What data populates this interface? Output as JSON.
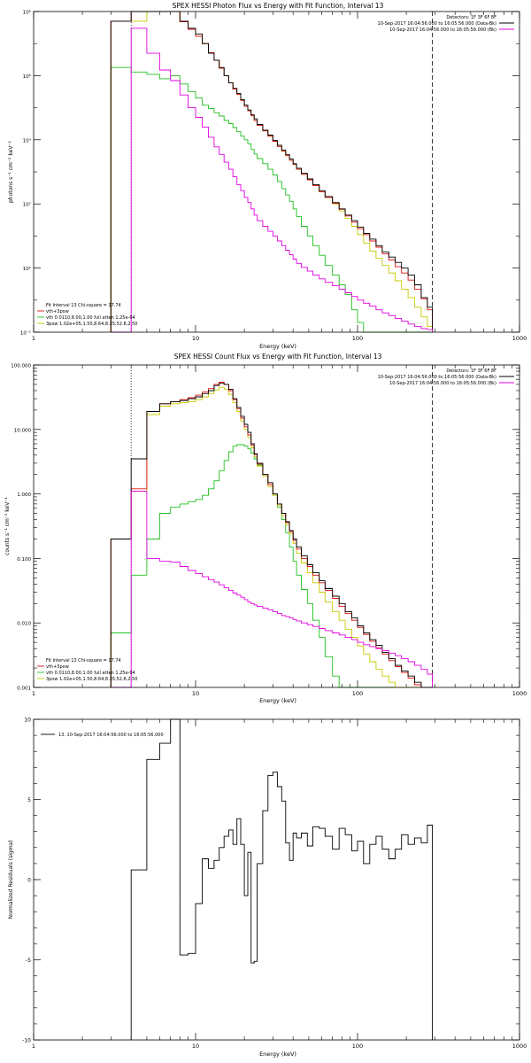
{
  "chart_data": [
    {
      "type": "line",
      "title": "SPEX HESSI Photon Flux vs Energy with Fit Function, Interval 13",
      "xlabel": "Energy (keV)",
      "ylabel": "photons s⁻¹ cm⁻² keV⁻¹",
      "xscale": "log",
      "yscale": "log",
      "xlim": [
        1,
        1000
      ],
      "ylim": [
        0.01,
        100000000
      ],
      "x_ticks": [
        "1",
        "10",
        "100",
        "1000"
      ],
      "y_ticks": [
        "10⁻²",
        "10⁰",
        "10²",
        "10⁴",
        "10⁶",
        "10⁸"
      ],
      "grid": false,
      "legend_position": "top-right",
      "legend": [
        {
          "text": "Detectors: 1F 3F 6F 8F",
          "color": "#000000"
        },
        {
          "text": "10-Sep-2017 16:04:56.000 to 16:05:56.000 (Data-Bk)",
          "color": "#000000"
        },
        {
          "text": "10-Sep-2017 16:04:56.000 to 16:05:56.000 (Bk)",
          "color": "#e000e0"
        }
      ],
      "fit_info": [
        {
          "text": "Fit Interval 13   Chi-square = 17.74",
          "color": "#000000"
        },
        {
          "text": "vth+3pow",
          "color": "#e01010"
        },
        {
          "text": "vth 0.0110,8.00,1.00  full atten 1.25e-04",
          "color": "#20c020"
        },
        {
          "text": "3pow 1.02e+05,1.50,8.64,8.35,52.8,2.50",
          "color": "#c8c800"
        }
      ],
      "vlines": [
        {
          "x": 4,
          "style": "dotted"
        },
        {
          "x": 290,
          "style": "dashed"
        }
      ],
      "bin_edges": [
        3,
        4,
        5,
        6,
        7,
        8,
        9,
        10,
        11,
        12,
        13,
        14,
        15,
        16,
        17,
        18,
        19,
        20,
        21,
        22,
        23,
        24,
        26,
        28,
        30,
        32,
        34,
        36,
        38,
        40,
        42,
        45,
        49,
        53,
        58,
        63,
        70,
        77,
        84,
        92,
        100,
        109,
        119,
        130,
        142,
        156,
        171,
        187,
        205,
        225,
        247,
        270,
        290
      ],
      "series": [
        {
          "name": "Data-Bk",
          "color": "#000000",
          "values": [
            50000000,
            400000000,
            300000000,
            200000000,
            100000000,
            50000000,
            30000000,
            20000000,
            10000000,
            5000000,
            3000000,
            1800000,
            1000000,
            600000,
            400000,
            280000,
            180000,
            120000,
            85000,
            60000,
            45000,
            30000,
            20000,
            14000,
            9500,
            6800,
            4800,
            3500,
            2500,
            1800,
            1300,
            900,
            600,
            400,
            260,
            170,
            110,
            70,
            45,
            30,
            19,
            12,
            8,
            5,
            3.2,
            2.2,
            1.5,
            1,
            0.6,
            0.3,
            0.12,
            0.06
          ]
        },
        {
          "name": "vth+3pow",
          "color": "#e01010",
          "values": [
            50000000,
            250000000,
            250000000,
            180000000,
            100000000,
            48000000,
            28000000,
            17000000,
            10000000,
            5200000,
            3000000,
            1700000,
            1000000,
            600000,
            380000,
            260000,
            170000,
            110000,
            80000,
            56000,
            40000,
            28000,
            19000,
            13000,
            9000,
            6200,
            4400,
            3200,
            2300,
            1700,
            1200,
            840,
            560,
            370,
            240,
            160,
            105,
            68,
            42,
            27,
            17,
            11,
            7,
            4.5,
            2.8,
            1.8,
            1.1,
            0.7,
            0.42,
            0.22,
            0.11,
            0.05
          ]
        },
        {
          "name": "vth",
          "color": "#20c020",
          "values": [
            1800000,
            1300000,
            1100000,
            800000,
            1000000,
            550000,
            320000,
            200000,
            120000,
            95000,
            70000,
            55000,
            40000,
            32000,
            24000,
            18000,
            13000,
            10000,
            7500,
            5000,
            3600,
            2600,
            1800,
            1200,
            800,
            500,
            300,
            190,
            120,
            70,
            40,
            20,
            10,
            5,
            2.5,
            1.2,
            0.6,
            0.3,
            0.15,
            0.05,
            0.02,
            0.01,
            0.01,
            0.01,
            0.01,
            0.01,
            0.01,
            0.01,
            0.01,
            0.01,
            0.01,
            0.01
          ]
        },
        {
          "name": "3pow",
          "color": "#c8c800",
          "values": [
            50000000,
            50000000,
            250000000,
            180000000,
            100000000,
            48000000,
            28000000,
            17000000,
            10000000,
            5200000,
            3000000,
            1700000,
            1000000,
            600000,
            380000,
            260000,
            170000,
            110000,
            80000,
            56000,
            40000,
            28000,
            19000,
            13000,
            9000,
            6200,
            4400,
            3200,
            2300,
            1700,
            1200,
            840,
            560,
            370,
            240,
            160,
            100,
            60,
            35,
            20,
            11,
            6,
            3.4,
            2,
            1.2,
            0.7,
            0.4,
            0.22,
            0.12,
            0.06,
            0.03,
            0.015
          ]
        },
        {
          "name": "Bk",
          "color": "#e000e0",
          "values": [
            0.01,
            30000000,
            5000000,
            1500000,
            700000,
            250000,
            100000,
            50000,
            25000,
            12000,
            6000,
            3500,
            2000,
            1200,
            700,
            400,
            260,
            160,
            110,
            70,
            45,
            30,
            20,
            14,
            10,
            7,
            5,
            3.6,
            2.6,
            1.9,
            1.4,
            1.05,
            0.8,
            0.6,
            0.46,
            0.36,
            0.28,
            0.22,
            0.17,
            0.13,
            0.1,
            0.08,
            0.065,
            0.05,
            0.04,
            0.033,
            0.027,
            0.022,
            0.018,
            0.015,
            0.013,
            0.012
          ]
        }
      ]
    },
    {
      "type": "line",
      "title": "SPEX HESSI Count Flux vs Energy with Fit Function, Interval 13",
      "xlabel": "Energy (keV)",
      "ylabel": "counts s⁻¹ cm⁻² keV⁻¹",
      "xscale": "log",
      "yscale": "log",
      "xlim": [
        1,
        1000
      ],
      "ylim": [
        0.001,
        100
      ],
      "x_ticks": [
        "1",
        "10",
        "100",
        "1000"
      ],
      "y_ticks": [
        "0.001",
        "0.010",
        "0.100",
        "1.000",
        "10.000",
        "100.000"
      ],
      "grid": false,
      "legend_position": "top-right",
      "legend": [
        {
          "text": "Detectors: 1F 3F 6F 8F",
          "color": "#000000"
        },
        {
          "text": "10-Sep-2017 16:04:56.000 to 16:05:56.000 (Data-Bk)",
          "color": "#000000"
        },
        {
          "text": "10-Sep-2017 16:04:56.000 to 16:05:56.000 (Bk)",
          "color": "#e000e0"
        }
      ],
      "fit_info": [
        {
          "text": "Fit Interval 13   Chi-square = 17.74",
          "color": "#000000"
        },
        {
          "text": "vth+3pow",
          "color": "#e01010"
        },
        {
          "text": "vth 0.0110,8.00,1.00  full atten 1.25e-04",
          "color": "#20c020"
        },
        {
          "text": "3pow 1.02e+05,1.50,8.64,8.35,52.8,2.50",
          "color": "#c8c800"
        }
      ],
      "vlines": [
        {
          "x": 4,
          "style": "dotted"
        },
        {
          "x": 290,
          "style": "dashed"
        }
      ],
      "bin_edges": [
        3,
        4,
        5,
        6,
        7,
        8,
        9,
        10,
        11,
        12,
        13,
        14,
        15,
        16,
        17,
        18,
        19,
        20,
        21,
        22,
        23,
        24,
        26,
        28,
        30,
        32,
        34,
        36,
        38,
        40,
        42,
        45,
        49,
        53,
        58,
        63,
        70,
        77,
        84,
        92,
        100,
        109,
        119,
        130,
        142,
        156,
        171,
        187,
        205,
        225,
        247,
        270,
        290
      ],
      "series": [
        {
          "name": "Data-Bk",
          "color": "#000000",
          "values": [
            0.2,
            3.5,
            19,
            25,
            27,
            28,
            30,
            32,
            36,
            40,
            48,
            52,
            50,
            42,
            30,
            22,
            16,
            12,
            9,
            6,
            4.2,
            3,
            2,
            1.5,
            1,
            0.7,
            0.5,
            0.37,
            0.27,
            0.2,
            0.15,
            0.11,
            0.08,
            0.06,
            0.045,
            0.034,
            0.026,
            0.02,
            0.015,
            0.012,
            0.009,
            0.007,
            0.0055,
            0.0045,
            0.0035,
            0.0028,
            0.0022,
            0.0018,
            0.0015,
            0.0012,
            0.001,
            0.001
          ]
        },
        {
          "name": "vth+3pow",
          "color": "#e01010",
          "values": [
            0.2,
            1.2,
            19,
            25,
            27,
            29,
            31,
            34,
            38,
            43,
            50,
            54,
            50,
            40,
            29,
            21,
            15,
            11,
            8.2,
            5.7,
            4.1,
            2.9,
            2,
            1.4,
            1,
            0.7,
            0.5,
            0.36,
            0.26,
            0.19,
            0.14,
            0.1,
            0.075,
            0.055,
            0.042,
            0.032,
            0.024,
            0.018,
            0.014,
            0.011,
            0.0085,
            0.0066,
            0.0052,
            0.0041,
            0.0033,
            0.0026,
            0.0021,
            0.0017,
            0.0014,
            0.0011,
            0.001,
            0.001
          ]
        },
        {
          "name": "vth",
          "color": "#20c020",
          "values": [
            0.007,
            0.055,
            0.2,
            0.5,
            0.62,
            0.7,
            0.76,
            0.82,
            0.95,
            1.2,
            1.6,
            2.3,
            3.3,
            4.5,
            5.5,
            5.8,
            5.8,
            5.5,
            5,
            4.3,
            3.5,
            2.8,
            2,
            1.4,
            0.95,
            0.62,
            0.4,
            0.25,
            0.15,
            0.09,
            0.055,
            0.033,
            0.02,
            0.011,
            0.006,
            0.003,
            0.0015,
            0.001,
            0.001,
            0.001,
            0.001,
            0.001,
            0.001,
            0.001,
            0.001,
            0.001,
            0.001,
            0.001,
            0.001,
            0.001,
            0.001,
            0.001
          ]
        },
        {
          "name": "3pow",
          "color": "#c8c800",
          "values": [
            0.2,
            1.1,
            17,
            23,
            25,
            26,
            27,
            29,
            32,
            36,
            41,
            45,
            42,
            35,
            26,
            19,
            13.5,
            10,
            7.5,
            5.2,
            3.8,
            2.7,
            1.9,
            1.3,
            0.95,
            0.66,
            0.46,
            0.33,
            0.24,
            0.17,
            0.12,
            0.085,
            0.06,
            0.042,
            0.03,
            0.021,
            0.015,
            0.011,
            0.008,
            0.006,
            0.0044,
            0.0033,
            0.0025,
            0.0019,
            0.0015,
            0.0012,
            0.001,
            0.001,
            0.001,
            0.001,
            0.001,
            0.001
          ]
        },
        {
          "name": "Bk",
          "color": "#e000e0",
          "values": [
            0.001,
            1.1,
            0.1,
            0.09,
            0.088,
            0.075,
            0.065,
            0.058,
            0.052,
            0.047,
            0.043,
            0.039,
            0.035,
            0.032,
            0.029,
            0.027,
            0.025,
            0.023,
            0.021,
            0.02,
            0.019,
            0.018,
            0.017,
            0.016,
            0.015,
            0.014,
            0.013,
            0.0125,
            0.012,
            0.0113,
            0.0107,
            0.01,
            0.0094,
            0.0088,
            0.0082,
            0.0076,
            0.007,
            0.0065,
            0.006,
            0.0055,
            0.005,
            0.0046,
            0.0043,
            0.004,
            0.0037,
            0.0034,
            0.0031,
            0.0028,
            0.0025,
            0.0022,
            0.0019,
            0.0016
          ]
        }
      ]
    },
    {
      "type": "line",
      "title": "",
      "xlabel": "Energy (keV)",
      "ylabel": "Normalized Residuals (sigma)",
      "xscale": "log",
      "yscale": "linear",
      "xlim": [
        1,
        1000
      ],
      "ylim": [
        -10,
        10
      ],
      "x_ticks": [
        "1",
        "10",
        "100",
        "1000"
      ],
      "y_ticks": [
        "-10",
        "-5",
        "0",
        "5",
        "10"
      ],
      "grid": false,
      "legend_position": "top-left",
      "legend": [
        {
          "text": "13. 10-Sep-2017 16:04:56.000 to 16:05:56.000",
          "color": "#000000"
        }
      ],
      "bin_edges": [
        4,
        5,
        6,
        7,
        8,
        9,
        10,
        11,
        12,
        13,
        14,
        15,
        16,
        17,
        18,
        19,
        20,
        21,
        22,
        23,
        24,
        26,
        28,
        30,
        32,
        34,
        36,
        38,
        40,
        42,
        45,
        49,
        53,
        58,
        63,
        70,
        77,
        84,
        92,
        100,
        109,
        119,
        130,
        142,
        156,
        171,
        187,
        205,
        225,
        247,
        270,
        290
      ],
      "series": [
        {
          "name": "",
          "color": "#000000",
          "values": [
            0.6,
            7.5,
            8.5,
            12,
            -4.7,
            -4.6,
            -1.5,
            1.3,
            0.7,
            1.2,
            2.0,
            2.7,
            3.1,
            2.2,
            3.8,
            2.2,
            -1.0,
            1.7,
            -5.2,
            -5.1,
            1.0,
            4.3,
            6.5,
            6.7,
            5.8,
            4.9,
            2.3,
            1.2,
            2.9,
            2.6,
            2.9,
            2.1,
            3.3,
            3.2,
            2.7,
            1.9,
            3.2,
            2.8,
            1.8,
            2.4,
            1.0,
            2.2,
            2.7,
            1.9,
            1.3,
            1.9,
            2.8,
            2.2,
            2.6,
            2.3,
            3.4,
            3.4
          ]
        }
      ]
    }
  ]
}
